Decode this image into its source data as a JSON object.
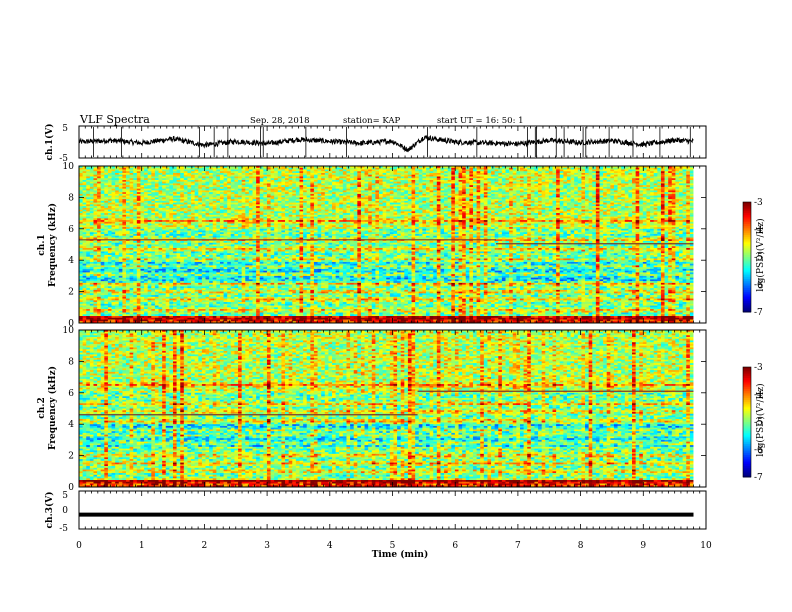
{
  "header": {
    "title": "VLF Spectra",
    "date": "Sep. 28, 2018",
    "station": "station= KAP",
    "start": "start  UT =   16: 50: 1"
  },
  "chart_data": [
    {
      "type": "line",
      "panel": "ch1-waveform",
      "ylabel": "ch.1(V)",
      "ylim": [
        -5,
        5
      ],
      "yticks": [
        "5",
        "-5"
      ],
      "xlim": [
        0,
        10
      ],
      "series": [
        {
          "x": [
            0,
            0.5,
            1,
            1.5,
            2,
            2.5,
            3,
            3.5,
            4,
            4.5,
            5,
            5.25,
            5.5,
            6,
            6.5,
            7,
            7.5,
            8,
            8.5,
            9,
            9.5,
            9.8
          ],
          "values": [
            0,
            0.5,
            -0.3,
            1,
            -1,
            0.2,
            -0.5,
            0.8,
            0.2,
            -0.4,
            0.3,
            -2.5,
            1.5,
            0,
            -0.3,
            -0.6,
            0.5,
            -0.2,
            0.4,
            -0.8,
            0.6,
            0.2
          ]
        }
      ]
    },
    {
      "type": "heatmap",
      "panel": "ch1-spectrogram",
      "ylabel": "ch.1\nFrequency (kHz)",
      "ylim": [
        0,
        10
      ],
      "yticks": [
        "0",
        "2",
        "4",
        "6",
        "8",
        "10"
      ],
      "xlim": [
        0,
        9.8
      ],
      "colorbar": {
        "label": "log(PSD)(V²/Hz)",
        "range": [
          -7,
          -3
        ],
        "ticks": [
          "-3",
          "-4",
          "-5",
          "-6",
          "-7"
        ]
      },
      "bands_khz": [
        0.3,
        0.8,
        1.5,
        2.0,
        2.5,
        3.1,
        3.6,
        4.0,
        4.7,
        5.3,
        6.5
      ],
      "step_line": {
        "x_break": 6.65,
        "before_khz": 5.3,
        "after_khz": 5.05
      }
    },
    {
      "type": "heatmap",
      "panel": "ch2-spectrogram",
      "ylabel": "ch.2\nFrequency (kHz)",
      "ylim": [
        0,
        10
      ],
      "yticks": [
        "0",
        "2",
        "4",
        "6",
        "8",
        "10"
      ],
      "xlim": [
        0,
        9.8
      ],
      "colorbar": {
        "label": "log(PSD)(V²/Hz)",
        "range": [
          -7,
          -3
        ],
        "ticks": [
          "-3",
          "-4",
          "-5",
          "-6",
          "-7"
        ]
      },
      "bands_khz": [
        0.4,
        1.0,
        1.5,
        2.0,
        2.8,
        3.3,
        3.6,
        4.2,
        4.8,
        5.3,
        6.5
      ],
      "step_line": {
        "x_break": 5.4,
        "before_khz": 4.6,
        "after_khz": 6.1
      }
    },
    {
      "type": "line",
      "panel": "ch3-waveform",
      "ylabel": "ch.3(V)",
      "ylim": [
        -5,
        5
      ],
      "yticks": [
        "5",
        "0",
        "-5"
      ],
      "xlim": [
        0,
        10
      ],
      "series": [
        {
          "x": [
            0,
            9.8
          ],
          "values": [
            -1.2,
            -1.2
          ]
        }
      ]
    }
  ],
  "xaxis": {
    "label": "Time  (min)",
    "ticks": [
      "0",
      "1",
      "2",
      "3",
      "4",
      "5",
      "6",
      "7",
      "8",
      "9",
      "10"
    ]
  },
  "colors": {
    "bg": "#ffffff",
    "ink": "#000000"
  }
}
